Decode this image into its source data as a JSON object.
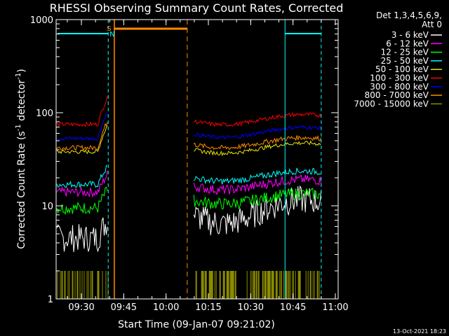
{
  "chart_data": {
    "type": "line",
    "title": "RHESSI Observing Summary Count Rates, Corrected",
    "xlabel": "Start Time (09-Jan-07 09:21:02)",
    "ylabel": "Corrected Count Rate (s",
    "ylabel_sup1": "-1",
    "ylabel_mid": " detector",
    "ylabel_sup2": "-1",
    "ylabel_end": ")",
    "y_scale": "log",
    "ylim": [
      1,
      1000
    ],
    "xlim": [
      "09:21:02",
      "11:01:00"
    ],
    "x_ticks": [
      "09:30",
      "09:45",
      "10:00",
      "10:15",
      "10:30",
      "10:45",
      "11:00"
    ],
    "y_ticks": [
      "1",
      "10",
      "100",
      "1000"
    ],
    "legend_header": [
      "Det 1,3,4,5,6,9,",
      "Att 0"
    ],
    "legend_position": "right",
    "timestamp": "13-Oct-2021 18:23",
    "flags": [
      {
        "label": "S",
        "color": "#ff8c00"
      },
      {
        "label": "N",
        "color": "#00ffff"
      }
    ],
    "series": [
      {
        "name": "3 - 6 keV",
        "color": "#ffffff"
      },
      {
        "name": "6 - 12 keV",
        "color": "#ff00ff"
      },
      {
        "name": "12 - 25 keV",
        "color": "#00ff00"
      },
      {
        "name": "25 - 50 keV",
        "color": "#00ffff"
      },
      {
        "name": "50 - 100 keV",
        "color": "#e6e600"
      },
      {
        "name": "100 - 300 keV",
        "color": "#ff0000"
      },
      {
        "name": "300 - 800 keV",
        "color": "#0000ff"
      },
      {
        "name": "800 - 7000 keV",
        "color": "#ff8c00"
      },
      {
        "name": "7000 - 15000 keV",
        "color": "#8b8b00"
      }
    ],
    "segments": [
      {
        "x": [
          "09:21:02",
          "09:39:30"
        ],
        "levels": [
          4.5,
          14,
          9.5,
          17,
          38,
          75,
          53,
          42,
          1.6
        ]
      },
      {
        "x": [
          "10:09:50",
          "10:55:00"
        ],
        "levels": [
          9,
          17,
          12,
          21,
          42,
          85,
          62,
          48,
          1.6
        ]
      }
    ]
  }
}
